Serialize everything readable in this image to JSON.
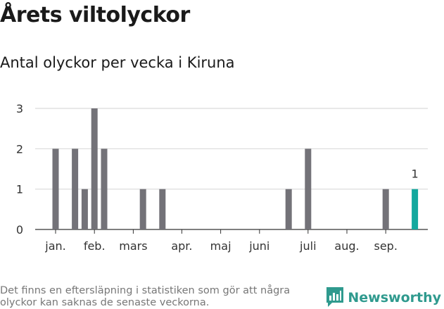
{
  "header": {
    "title": "Årets viltolyckor",
    "subtitle": "Antal olyckor per vecka i Kiruna"
  },
  "footer": {
    "note": "Det finns en eftersläpning i statistiken som gör att några olyckor kan saknas de senaste veckorna.",
    "brand": "Newsworthy"
  },
  "colors": {
    "bar": "#737278",
    "highlight": "#13a89e",
    "grid": "#d9d9d9",
    "brand": "#2f9a8e"
  },
  "chart_data": {
    "type": "bar",
    "title": "",
    "xlabel": "",
    "ylabel": "",
    "ylim": [
      0,
      3
    ],
    "yticks": [
      0,
      1,
      2,
      3
    ],
    "grid": true,
    "x_unit": "week",
    "x": [
      1,
      2,
      3,
      4,
      5,
      6,
      7,
      8,
      9,
      10,
      11,
      12,
      13,
      14,
      15,
      16,
      17,
      18,
      19,
      20,
      21,
      22,
      23,
      24,
      25,
      26,
      27,
      28,
      29,
      30,
      31,
      32,
      33,
      34,
      35,
      36,
      37,
      38
    ],
    "values": [
      2,
      0,
      2,
      1,
      3,
      2,
      0,
      0,
      0,
      1,
      0,
      1,
      0,
      0,
      0,
      0,
      0,
      0,
      0,
      0,
      0,
      0,
      0,
      0,
      1,
      0,
      2,
      0,
      0,
      0,
      0,
      0,
      0,
      0,
      1,
      0,
      0,
      1
    ],
    "highlight": {
      "x": 38,
      "label": "1"
    },
    "x_tick_labels": [
      {
        "label": "jan.",
        "x": 1
      },
      {
        "label": "feb.",
        "x": 5
      },
      {
        "label": "mars",
        "x": 9
      },
      {
        "label": "apr.",
        "x": 14
      },
      {
        "label": "maj",
        "x": 18
      },
      {
        "label": "juni",
        "x": 22
      },
      {
        "label": "juli",
        "x": 27
      },
      {
        "label": "aug.",
        "x": 31
      },
      {
        "label": "sep.",
        "x": 35
      }
    ]
  }
}
